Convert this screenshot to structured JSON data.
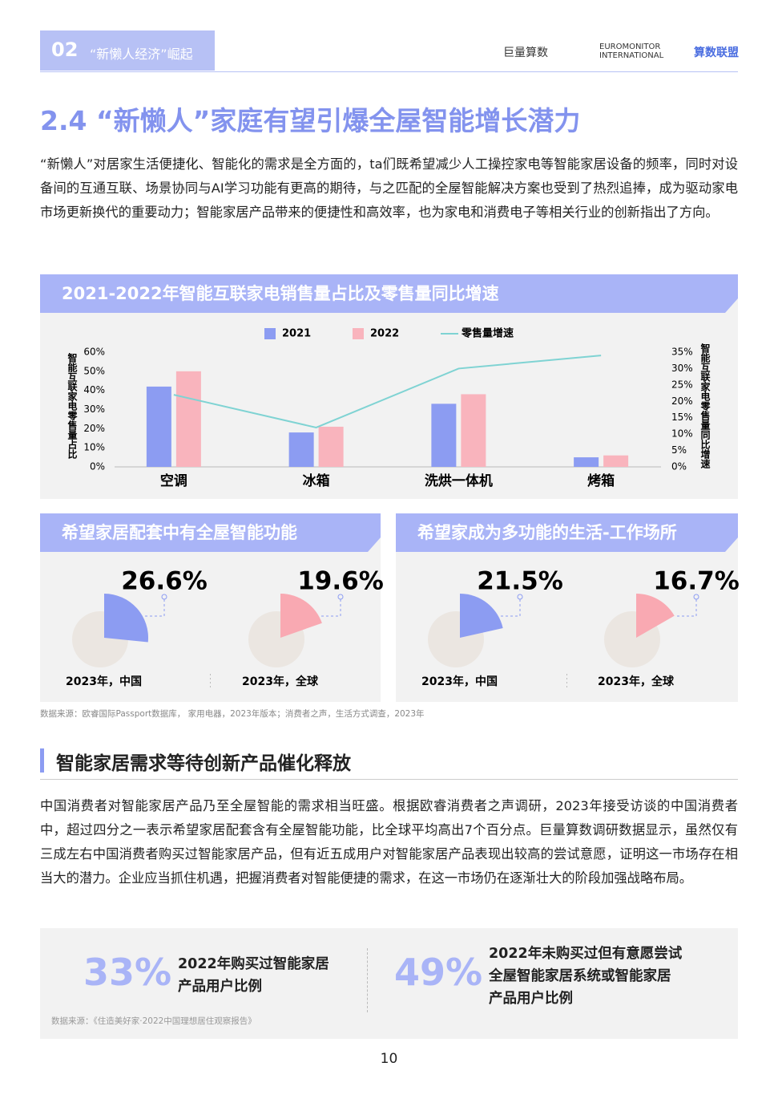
{
  "header": {
    "section_number": "02",
    "section_title": "“新懒人经济”崛起",
    "logos": [
      "巨量算数",
      "EUROMONITOR",
      "INTERNATIONAL",
      "算数联盟"
    ]
  },
  "title": "2.4 “新懒人”家庭有望引爆全屋智能增长潜力",
  "intro": "“新懒人”对居家生活便捷化、智能化的需求是全方面的，ta们既希望减少人工操控家电等智能家居设备的频率，同时对设备间的互通互联、场景协同与AI学习功能有更高的期待，与之匹配的全屋智能解决方案也受到了热烈追捧，成为驱动家电市场更新换代的重要动力；智能家居产品带来的便捷性和高效率，也为家电和消费电子等相关行业的创新指出了方向。",
  "chart_data": [
    {
      "type": "bar",
      "title": "2021-2022年智能互联家电销售量占比及零售量同比增速",
      "categories": [
        "空调",
        "冰箱",
        "洗烘一体机",
        "烤箱"
      ],
      "series": [
        {
          "name": "2021",
          "color": "#8c9cf2",
          "values": [
            42,
            18,
            33,
            5
          ]
        },
        {
          "name": "2022",
          "color": "#f9b4bd",
          "values": [
            50,
            21,
            38,
            6
          ]
        },
        {
          "name": "零售量增速",
          "type": "line",
          "axis": "y2",
          "color": "#7fd3d3",
          "values": [
            22,
            12,
            30,
            34
          ]
        }
      ],
      "y_label": "智能互联家电零售量占比",
      "y2_label": "智能互联家电零售量同比增速",
      "ylim": [
        0,
        60
      ],
      "yticks": [
        {
          "value": 0,
          "label": "0%"
        },
        {
          "value": 10,
          "label": "10%"
        },
        {
          "value": 20,
          "label": "20%"
        },
        {
          "value": 30,
          "label": "30%"
        },
        {
          "value": 40,
          "label": "40%"
        },
        {
          "value": 50,
          "label": "50%"
        },
        {
          "value": 60,
          "label": "60%"
        }
      ],
      "y2lim": [
        0,
        35
      ],
      "y2ticks": [
        {
          "value": 0,
          "label": "0%"
        },
        {
          "value": 5,
          "label": "5%"
        },
        {
          "value": 10,
          "label": "10%"
        },
        {
          "value": 15,
          "label": "15%"
        },
        {
          "value": 20,
          "label": "20%"
        },
        {
          "value": 25,
          "label": "25%"
        },
        {
          "value": 30,
          "label": "30%"
        },
        {
          "value": 35,
          "label": "35%"
        }
      ]
    },
    {
      "type": "pie",
      "title": "希望家居配套中有全屋智能功能",
      "categories": [
        "2023年，中国",
        "2023年，全球"
      ],
      "values": [
        26.6,
        19.6
      ],
      "value_labels": [
        "26.6%",
        "19.6%"
      ],
      "colors": [
        "#8c9cf2",
        "#f9a9b2"
      ]
    },
    {
      "type": "pie",
      "title": "希望家成为多功能的生活-工作场所",
      "categories": [
        "2023年，中国",
        "2023年，全球"
      ],
      "values": [
        21.5,
        16.7
      ],
      "value_labels": [
        "21.5%",
        "16.7%"
      ],
      "colors": [
        "#8c9cf2",
        "#f9a9b2"
      ]
    }
  ],
  "chart_source": "数据来源：欧睿国际Passport数据库， 家用电器，2023年版本；消费者之声，生活方式调查，2023年",
  "section": {
    "heading": "智能家居需求等待创新产品催化释放",
    "body": "中国消费者对智能家居产品乃至全屋智能的需求相当旺盛。根据欧睿消费者之声调研，2023年接受访谈的中国消费者中，超过四分之一表示希望家居配套含有全屋智能功能，比全球平均高出7个百分点。巨量算数调研数据显示，虽然仅有三成左右中国消费者购买过智能家居产品，但有近五成用户对智能家居产品表现出较高的尝试意愿，证明这一市场存在相当大的潜力。企业应当抓住机遇，把握消费者对智能便捷的需求，在这一市场仍在逐渐壮大的阶段加强战略布局。"
  },
  "stats": [
    {
      "value": "33%",
      "label": "2022年购买过智能家居\n产品用户比例"
    },
    {
      "value": "49%",
      "label": "2022年未购买过但有意愿尝试\n全屋智能家居系统或智能家居\n产品用户比例"
    }
  ],
  "stats_source": "数据来源：《住造美好家·2022中国理想居住观察报告》",
  "page_number": "10"
}
